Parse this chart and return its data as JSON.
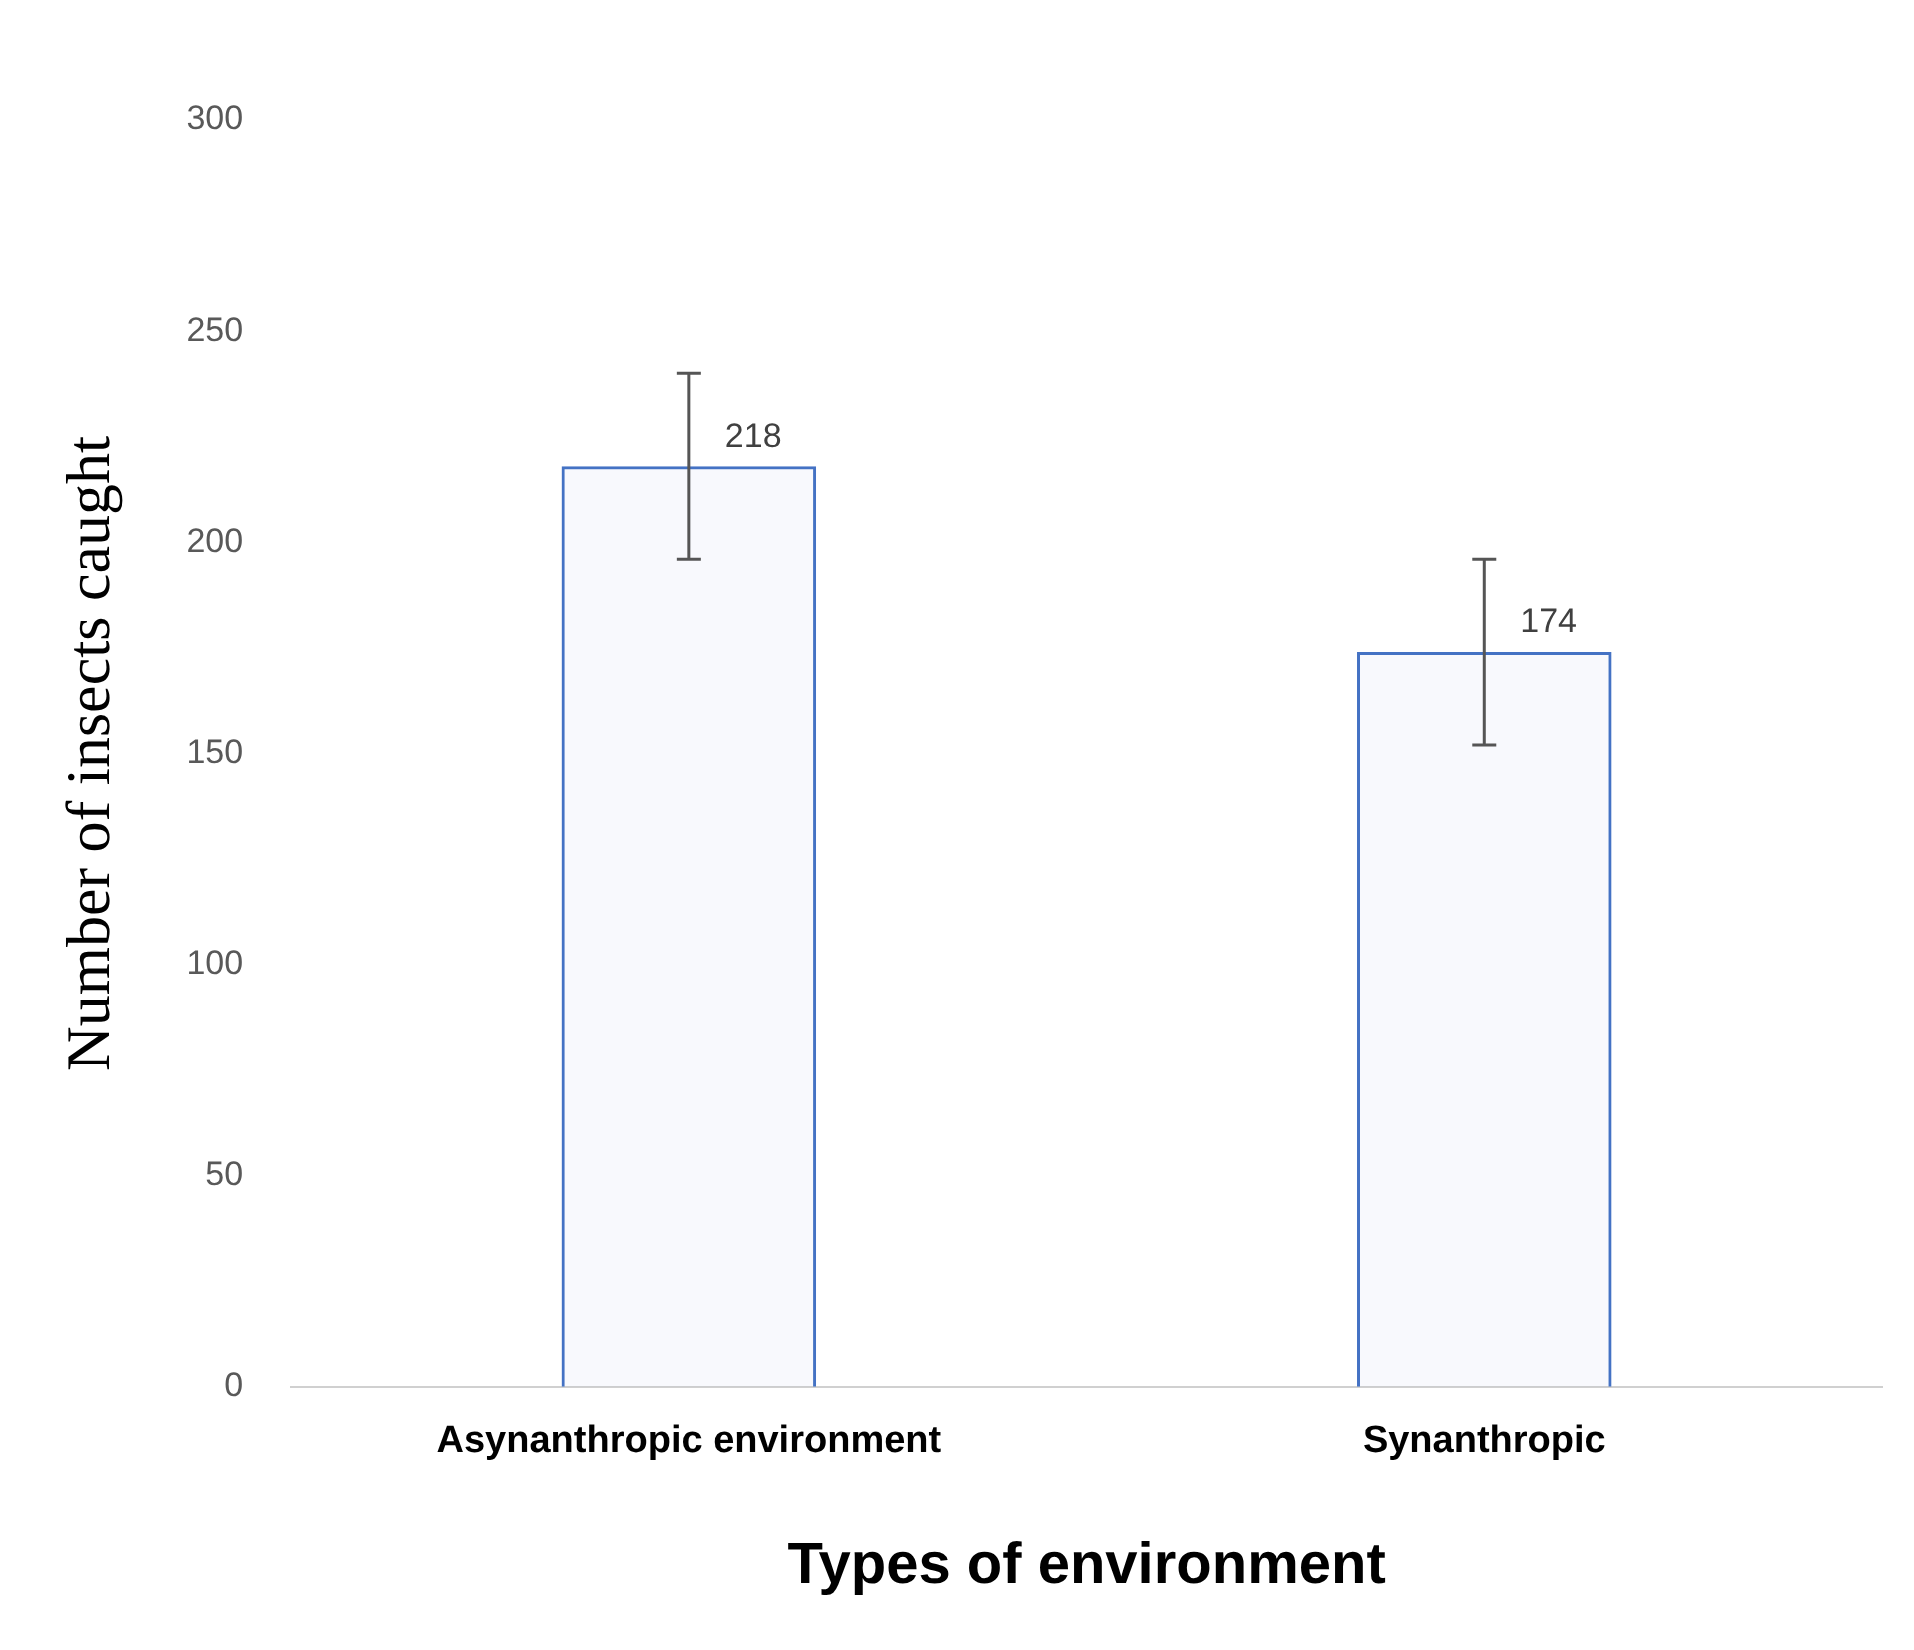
{
  "chart_data": {
    "type": "bar",
    "xlabel": "Types of environment",
    "ylabel": "Number of insects caught",
    "categories": [
      "Asynanthropic environment",
      "Synanthropic"
    ],
    "values": [
      218,
      174
    ],
    "errors": [
      22,
      22
    ],
    "color": "#4472c4",
    "ylim": [
      0,
      300
    ],
    "yticks": [
      0,
      50,
      100,
      150,
      200,
      250,
      300
    ],
    "grid": false,
    "legend": false,
    "data_labels": true
  }
}
